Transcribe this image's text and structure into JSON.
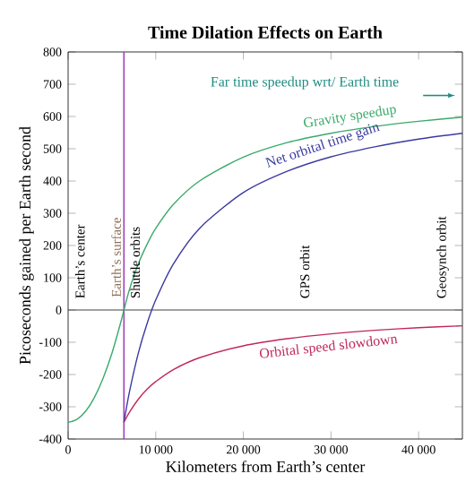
{
  "chart_data": {
    "type": "line",
    "title": "Time Dilation Effects on Earth",
    "xlabel": "Kilometers from Earth’s center",
    "ylabel": "Picoseconds gained per Earth second",
    "xlim": [
      0,
      45000
    ],
    "ylim": [
      -400,
      800
    ],
    "xticks": [
      0,
      {
        "value": 10000,
        "label": "10 000"
      },
      {
        "value": 20000,
        "label": "20 000"
      },
      {
        "value": 30000,
        "label": "30 000"
      },
      {
        "value": 40000,
        "label": "40 000"
      }
    ],
    "yticks": [
      -400,
      -300,
      -200,
      -100,
      0,
      100,
      200,
      300,
      400,
      500,
      600,
      700,
      800
    ],
    "grid": false,
    "marker": "none",
    "line_style": "solid",
    "series": [
      {
        "name": "Gravity speedup",
        "color": "#3aaa6a",
        "x": [
          0,
          1000,
          2000,
          3000,
          4000,
          5000,
          6000,
          6371,
          7000,
          8000,
          9000,
          10000,
          12000,
          15000,
          20000,
          25000,
          30000,
          35000,
          40000,
          45000
        ],
        "values": [
          -348,
          -339,
          -314,
          -271,
          -211,
          -134,
          -39,
          0,
          63,
          142,
          203,
          253,
          327,
          400,
          474,
          519,
          548,
          569,
          585,
          598
        ]
      },
      {
        "name": "Net orbital time gain",
        "color": "#3a3aa0",
        "x": [
          6371,
          7000,
          8000,
          9000,
          10000,
          12000,
          15000,
          20000,
          25000,
          30000,
          35000,
          40000,
          45000
        ],
        "values": [
          -348,
          -254,
          -135,
          -43,
          31,
          142,
          253,
          364,
          430,
          475,
          506,
          530,
          548
        ]
      },
      {
        "name": "Orbital speed slowdown",
        "color": "#c0285a",
        "x": [
          6371,
          7000,
          8000,
          9000,
          10000,
          12000,
          15000,
          20000,
          25000,
          30000,
          35000,
          40000,
          45000
        ],
        "values": [
          -348,
          -317,
          -277,
          -246,
          -222,
          -185,
          -148,
          -111,
          -89,
          -74,
          -63,
          -55,
          -49
        ]
      }
    ],
    "ref_lines": [
      {
        "axis": "x",
        "value": 6371,
        "label": "Earth’s surface",
        "color": "#a040c0"
      },
      {
        "axis": "y",
        "value": 0,
        "color": "#404040"
      }
    ],
    "annotations": [
      "Far time speedup wrt/ Earth time",
      "Earth’s center",
      "Shuttle orbits",
      "GPS orbit",
      "Geosynch orbit"
    ]
  }
}
